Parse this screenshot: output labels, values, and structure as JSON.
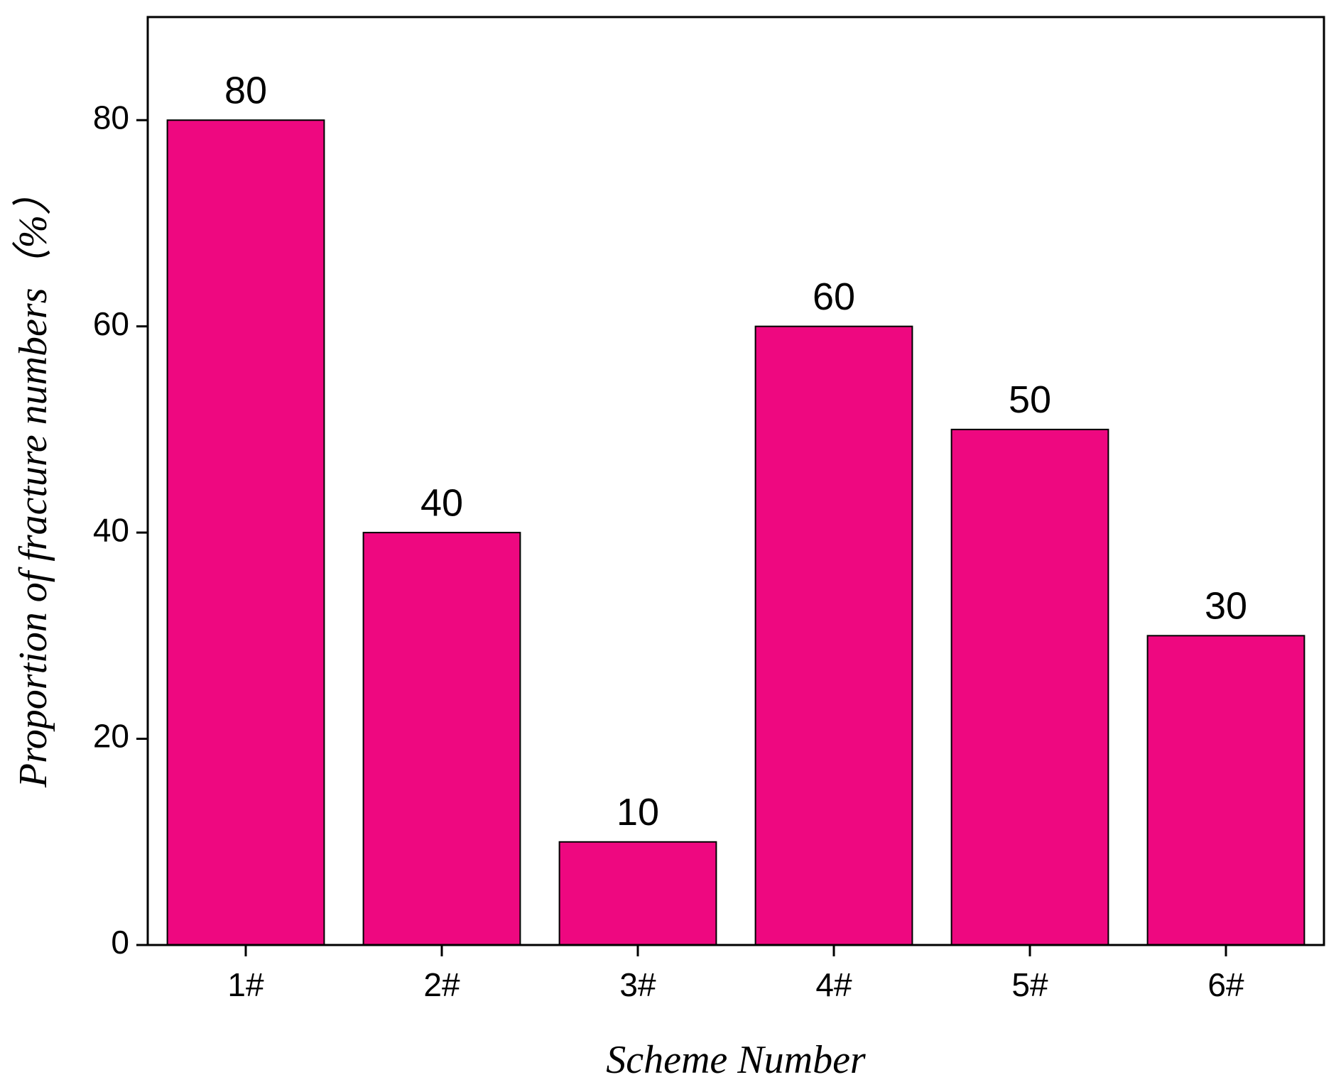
{
  "chart_data": {
    "type": "bar",
    "x_label": "Scheme Number",
    "y_label": "Proportion of fracture numbers（%）",
    "categories": [
      "1#",
      "2#",
      "3#",
      "4#",
      "5#",
      "6#"
    ],
    "values": [
      80,
      40,
      10,
      60,
      50,
      30
    ],
    "color": "#ee0880",
    "ylim": [
      0,
      90
    ],
    "yticks": [
      0,
      20,
      40,
      60,
      80
    ]
  }
}
